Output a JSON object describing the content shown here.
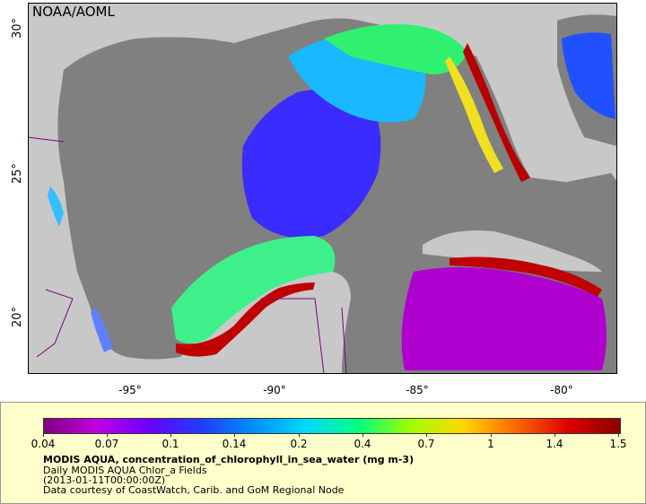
{
  "map": {
    "agency": "NOAA/AOML",
    "lat_labels": [
      "30°",
      "25°",
      "20°"
    ],
    "lon_labels": [
      "-95°",
      "-90°",
      "-85°",
      "-80°"
    ]
  },
  "legend": {
    "ticks": [
      "0.04",
      "0.07",
      "0.1",
      "0.14",
      "0.2",
      "0.4",
      "0.7",
      "1",
      "1.4",
      "1.5"
    ],
    "title": "MODIS AQUA, concentration_of_chlorophyll_in_sea_water (mg m-3)",
    "subtitle": "Daily MODIS AQUA Chlor_a Fields",
    "date": "(2013-01-11T00:00:00Z)",
    "credit": "Data courtesy of CoastWatch, Carib. and GoM Regional Node"
  },
  "colors": {
    "land": "#c8c8c8",
    "no_data": "#808080",
    "border": "#800080"
  }
}
